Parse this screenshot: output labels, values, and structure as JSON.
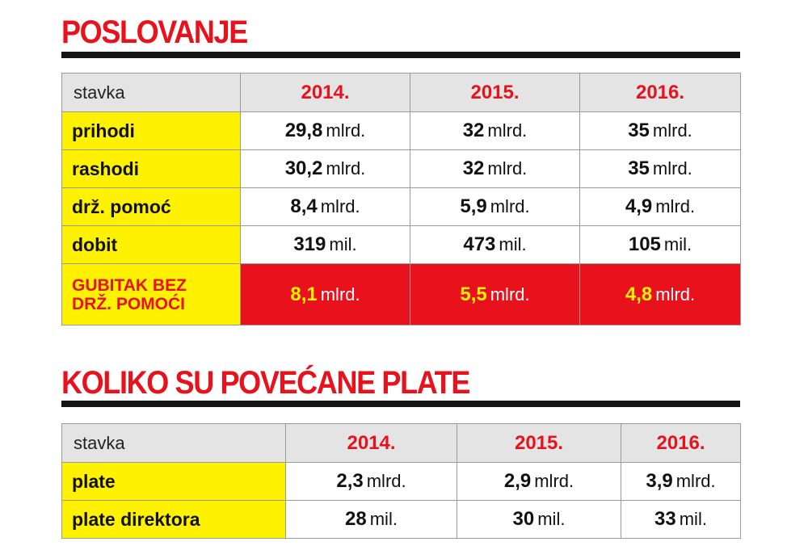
{
  "section1": {
    "title": "POSLOVANJE",
    "header": [
      "stavka",
      "2014.",
      "2015.",
      "2016."
    ],
    "rows": [
      {
        "label": "prihodi",
        "cells": [
          {
            "num": "29,8",
            "unit": "mlrd."
          },
          {
            "num": "32",
            "unit": "mlrd."
          },
          {
            "num": "35",
            "unit": "mlrd."
          }
        ]
      },
      {
        "label": "rashodi",
        "cells": [
          {
            "num": "30,2",
            "unit": "mlrd."
          },
          {
            "num": "32",
            "unit": "mlrd."
          },
          {
            "num": "35",
            "unit": "mlrd."
          }
        ]
      },
      {
        "label": "drž. pomoć",
        "cells": [
          {
            "num": "8,4",
            "unit": "mlrd."
          },
          {
            "num": "5,9",
            "unit": "mlrd."
          },
          {
            "num": "4,9",
            "unit": "mlrd."
          }
        ]
      },
      {
        "label": "dobit",
        "cells": [
          {
            "num": "319",
            "unit": "mil."
          },
          {
            "num": "473",
            "unit": "mil."
          },
          {
            "num": "105",
            "unit": "mil."
          }
        ]
      }
    ],
    "loss_row": {
      "label_line1": "GUBITAK BEZ",
      "label_line2": "DRŽ. POMOĆI",
      "cells": [
        {
          "num": "8,1",
          "unit": "mlrd."
        },
        {
          "num": "5,5",
          "unit": "mlrd."
        },
        {
          "num": "4,8",
          "unit": "mlrd."
        }
      ]
    }
  },
  "section2": {
    "title": "KOLIKO SU POVEĆANE PLATE",
    "header": [
      "stavka",
      "2014.",
      "2015.",
      "2016."
    ],
    "rows": [
      {
        "label": "plate",
        "cells": [
          {
            "num": "2,3",
            "unit": "mlrd."
          },
          {
            "num": "2,9",
            "unit": "mlrd."
          },
          {
            "num": "3,9",
            "unit": "mlrd."
          }
        ]
      },
      {
        "label": "plate direktora",
        "cells": [
          {
            "num": "28",
            "unit": "mil."
          },
          {
            "num": "30",
            "unit": "mil."
          },
          {
            "num": "33",
            "unit": "mil."
          }
        ]
      }
    ]
  }
}
